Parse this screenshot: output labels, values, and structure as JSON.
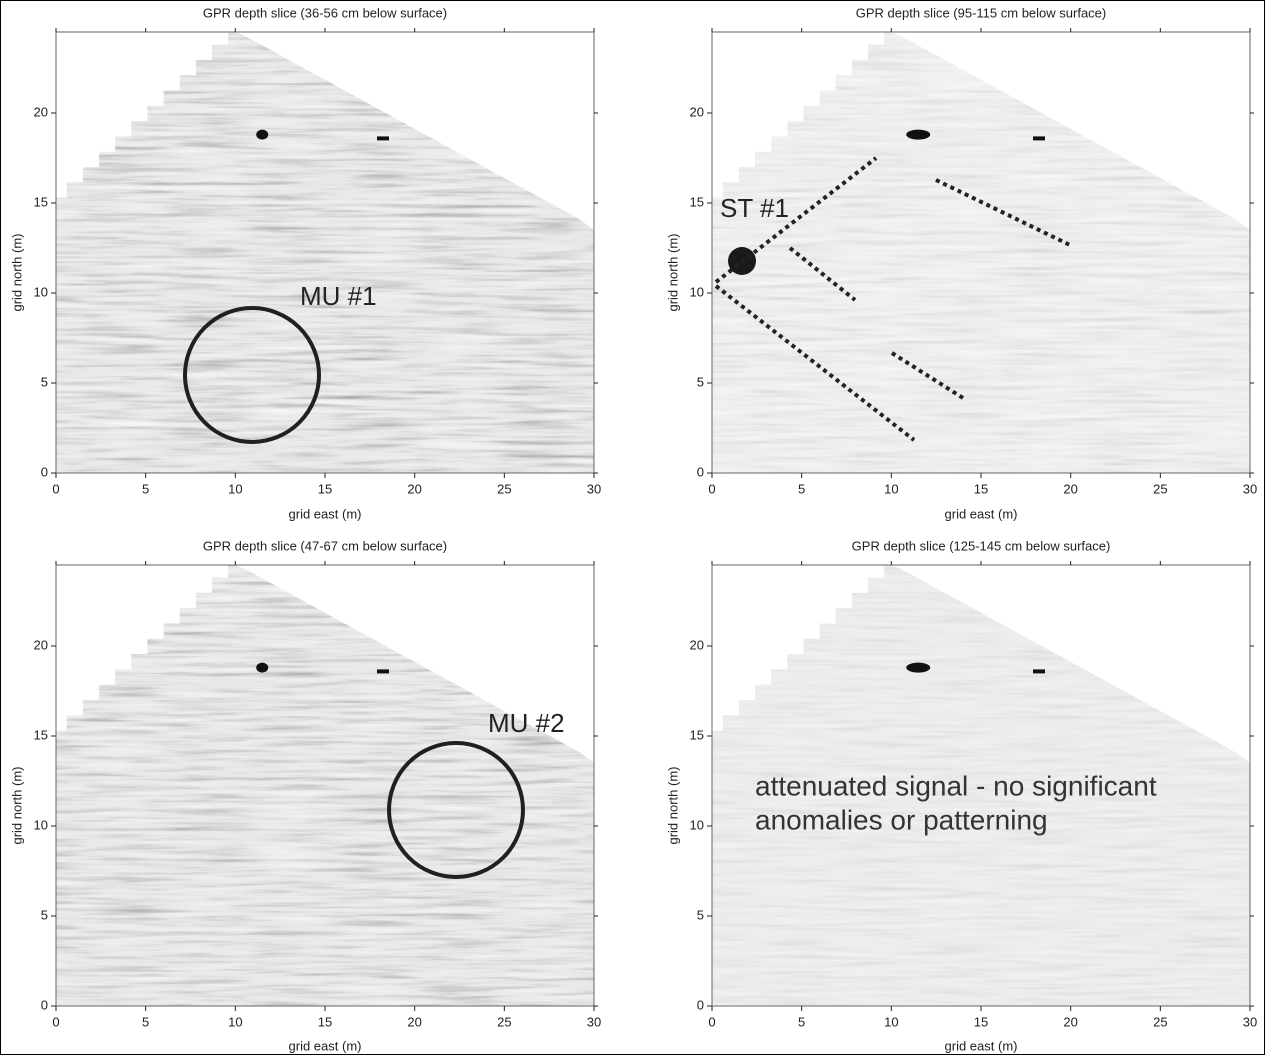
{
  "chart_data": [
    {
      "type": "heatmap",
      "title": "GPR depth slice (36-56 cm below surface)",
      "x_label": "grid east (m)",
      "y_label": "grid north (m)",
      "xlim": [
        0,
        30
      ],
      "ylim": [
        0,
        24.5
      ],
      "xticks": [
        0,
        5,
        10,
        15,
        20,
        25,
        30
      ],
      "yticks": [
        0,
        5,
        10,
        15,
        20
      ],
      "annotations": [
        "MU #1"
      ]
    },
    {
      "type": "heatmap",
      "title": "GPR depth slice (95-115 cm below surface)",
      "x_label": "grid east (m)",
      "y_label": "grid north (m)",
      "xlim": [
        0,
        30
      ],
      "ylim": [
        0,
        24.5
      ],
      "xticks": [
        0,
        5,
        10,
        15,
        20,
        25,
        30
      ],
      "yticks": [
        0,
        5,
        10,
        15,
        20
      ],
      "annotations": [
        "ST #1"
      ]
    },
    {
      "type": "heatmap",
      "title": "GPR depth slice (47-67 cm below surface)",
      "x_label": "grid east (m)",
      "y_label": "grid north (m)",
      "xlim": [
        0,
        30
      ],
      "ylim": [
        0,
        24.5
      ],
      "xticks": [
        0,
        5,
        10,
        15,
        20,
        25,
        30
      ],
      "yticks": [
        0,
        5,
        10,
        15,
        20
      ],
      "annotations": [
        "MU #2"
      ]
    },
    {
      "type": "heatmap",
      "title": "GPR depth slice (125-145 cm below surface)",
      "x_label": "grid east (m)",
      "y_label": "grid north (m)",
      "xlim": [
        0,
        30
      ],
      "ylim": [
        0,
        24.5
      ],
      "xticks": [
        0,
        5,
        10,
        15,
        20,
        25,
        30
      ],
      "yticks": [
        0,
        5,
        10,
        15,
        20
      ],
      "annotations": [
        "attenuated signal - no significant",
        "anomalies or patterning"
      ]
    }
  ]
}
